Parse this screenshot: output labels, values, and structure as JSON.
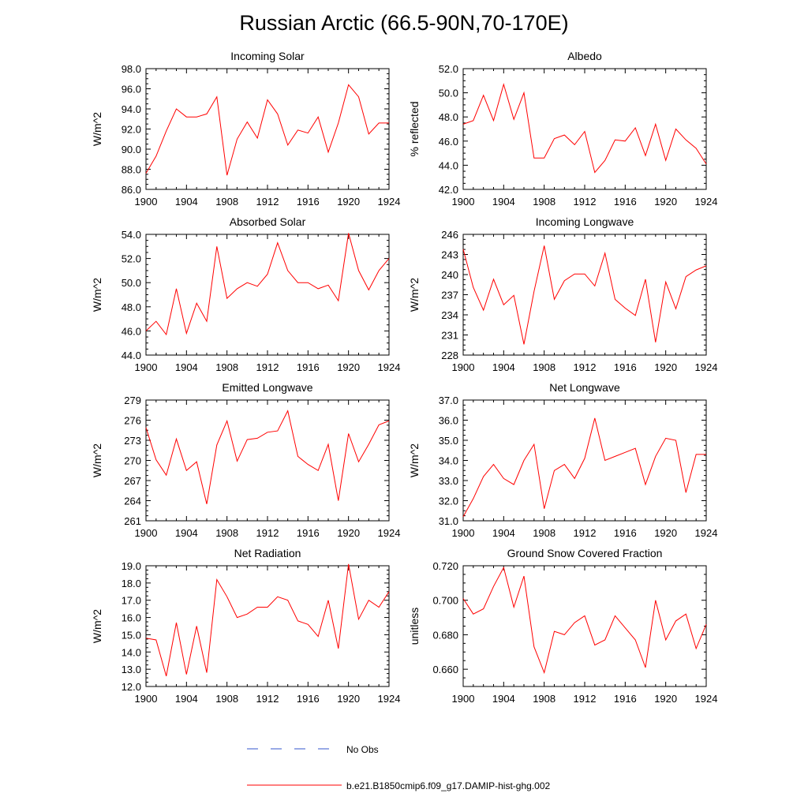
{
  "title": "Russian Arctic (66.5-90N,70-170E)",
  "legend": [
    {
      "label": "No Obs",
      "color": "#3355cc",
      "style": "dashed"
    },
    {
      "label": "b.e21.B1850cmip6.f09_g17.DAMIP-hist-ghg.002",
      "color": "#ff0000",
      "style": "solid"
    }
  ],
  "chart_data": [
    {
      "type": "line",
      "title": "Incoming Solar",
      "ylabel": "W/m^2",
      "xlim": [
        1900,
        1924
      ],
      "ylim": [
        86.0,
        98.0
      ],
      "xticks": [
        "1900",
        "1904",
        "1908",
        "1912",
        "1916",
        "1920",
        "1924"
      ],
      "yticks": [
        "86.0",
        "88.0",
        "90.0",
        "92.0",
        "94.0",
        "96.0",
        "98.0"
      ],
      "x": [
        1900,
        1901,
        1902,
        1903,
        1904,
        1905,
        1906,
        1907,
        1908,
        1909,
        1910,
        1911,
        1912,
        1913,
        1914,
        1915,
        1916,
        1917,
        1918,
        1919,
        1920,
        1921,
        1922,
        1923,
        1924
      ],
      "series": [
        {
          "color": "#ff0000",
          "values": [
            87.6,
            89.3,
            91.8,
            94.0,
            93.2,
            93.2,
            93.5,
            95.2,
            87.4,
            91.0,
            92.7,
            91.1,
            94.9,
            93.5,
            90.4,
            91.9,
            91.6,
            93.2,
            89.7,
            92.6,
            96.4,
            95.2,
            91.5,
            92.6,
            92.6
          ]
        }
      ]
    },
    {
      "type": "line",
      "title": "Albedo",
      "ylabel": "% reflected",
      "xlim": [
        1900,
        1924
      ],
      "ylim": [
        42.0,
        52.0
      ],
      "xticks": [
        "1900",
        "1904",
        "1908",
        "1912",
        "1916",
        "1920",
        "1924"
      ],
      "yticks": [
        "42.0",
        "44.0",
        "46.0",
        "48.0",
        "50.0",
        "52.0"
      ],
      "x": [
        1900,
        1901,
        1902,
        1903,
        1904,
        1905,
        1906,
        1907,
        1908,
        1909,
        1910,
        1911,
        1912,
        1913,
        1914,
        1915,
        1916,
        1917,
        1918,
        1919,
        1920,
        1921,
        1922,
        1923,
        1924
      ],
      "series": [
        {
          "color": "#ff0000",
          "values": [
            47.4,
            47.7,
            49.8,
            47.7,
            50.7,
            47.8,
            50.0,
            44.6,
            44.6,
            46.2,
            46.5,
            45.7,
            46.8,
            43.4,
            44.4,
            46.1,
            46.0,
            47.1,
            44.8,
            47.4,
            44.4,
            47.0,
            46.1,
            45.4,
            44.1
          ]
        }
      ]
    },
    {
      "type": "line",
      "title": "Absorbed Solar",
      "ylabel": "W/m^2",
      "xlim": [
        1900,
        1924
      ],
      "ylim": [
        44.0,
        54.0
      ],
      "xticks": [
        "1900",
        "1904",
        "1908",
        "1912",
        "1916",
        "1920",
        "1924"
      ],
      "yticks": [
        "44.0",
        "46.0",
        "48.0",
        "50.0",
        "52.0",
        "54.0"
      ],
      "x": [
        1900,
        1901,
        1902,
        1903,
        1904,
        1905,
        1906,
        1907,
        1908,
        1909,
        1910,
        1911,
        1912,
        1913,
        1914,
        1915,
        1916,
        1917,
        1918,
        1919,
        1920,
        1921,
        1922,
        1923,
        1924
      ],
      "series": [
        {
          "color": "#ff0000",
          "values": [
            46.0,
            46.8,
            45.7,
            49.5,
            45.8,
            48.3,
            46.8,
            53.0,
            48.7,
            49.5,
            50.0,
            49.7,
            50.7,
            53.3,
            51.0,
            50.0,
            50.0,
            49.5,
            49.8,
            48.5,
            54.1,
            51.0,
            49.4,
            51.0,
            52.0
          ]
        }
      ]
    },
    {
      "type": "line",
      "title": "Incoming Longwave",
      "ylabel": "W/m^2",
      "xlim": [
        1900,
        1924
      ],
      "ylim": [
        228,
        246
      ],
      "xticks": [
        "1900",
        "1904",
        "1908",
        "1912",
        "1916",
        "1920",
        "1924"
      ],
      "yticks": [
        "228",
        "231",
        "234",
        "237",
        "240",
        "243",
        "246"
      ],
      "x": [
        1900,
        1901,
        1902,
        1903,
        1904,
        1905,
        1906,
        1907,
        1908,
        1909,
        1910,
        1911,
        1912,
        1913,
        1914,
        1915,
        1916,
        1917,
        1918,
        1919,
        1920,
        1921,
        1922,
        1923,
        1924
      ],
      "series": [
        {
          "color": "#ff0000",
          "values": [
            243.8,
            238.1,
            234.7,
            239.3,
            235.5,
            236.9,
            229.6,
            237.5,
            244.3,
            236.3,
            239.1,
            240.1,
            240.1,
            238.3,
            243.2,
            236.3,
            235.0,
            233.9,
            239.3,
            229.9,
            238.9,
            234.9,
            239.7,
            240.7,
            241.3
          ]
        }
      ]
    },
    {
      "type": "line",
      "title": "Emitted Longwave",
      "ylabel": "W/m^2",
      "xlim": [
        1900,
        1924
      ],
      "ylim": [
        261,
        279
      ],
      "xticks": [
        "1900",
        "1904",
        "1908",
        "1912",
        "1916",
        "1920",
        "1924"
      ],
      "yticks": [
        "261",
        "264",
        "267",
        "270",
        "273",
        "276",
        "279"
      ],
      "x": [
        1900,
        1901,
        1902,
        1903,
        1904,
        1905,
        1906,
        1907,
        1908,
        1909,
        1910,
        1911,
        1912,
        1913,
        1914,
        1915,
        1916,
        1917,
        1918,
        1919,
        1920,
        1921,
        1922,
        1923,
        1924
      ],
      "series": [
        {
          "color": "#ff0000",
          "values": [
            274.9,
            270.1,
            267.8,
            273.2,
            268.5,
            269.8,
            263.5,
            272.3,
            275.9,
            269.9,
            273.1,
            273.3,
            274.2,
            274.4,
            277.4,
            270.6,
            269.4,
            268.5,
            272.4,
            264.0,
            274.0,
            269.8,
            272.4,
            275.3,
            275.9
          ]
        }
      ]
    },
    {
      "type": "line",
      "title": "Net Longwave",
      "ylabel": "W/m^2",
      "xlim": [
        1900,
        1924
      ],
      "ylim": [
        31.0,
        37.0
      ],
      "xticks": [
        "1900",
        "1904",
        "1908",
        "1912",
        "1916",
        "1920",
        "1924"
      ],
      "yticks": [
        "31.0",
        "32.0",
        "33.0",
        "34.0",
        "35.0",
        "36.0",
        "37.0"
      ],
      "x": [
        1900,
        1901,
        1902,
        1903,
        1904,
        1905,
        1906,
        1907,
        1908,
        1909,
        1910,
        1911,
        1912,
        1913,
        1914,
        1915,
        1916,
        1917,
        1918,
        1919,
        1920,
        1921,
        1922,
        1923,
        1924
      ],
      "series": [
        {
          "color": "#ff0000",
          "values": [
            31.2,
            32.1,
            33.2,
            33.8,
            33.1,
            32.8,
            34.0,
            34.8,
            31.6,
            33.5,
            33.8,
            33.1,
            34.1,
            36.1,
            34.0,
            34.2,
            34.4,
            34.6,
            32.8,
            34.2,
            35.1,
            35.0,
            32.4,
            34.3,
            34.3
          ]
        }
      ]
    },
    {
      "type": "line",
      "title": "Net Radiation",
      "ylabel": "W/m^2",
      "xlim": [
        1900,
        1924
      ],
      "ylim": [
        12.0,
        19.0
      ],
      "xticks": [
        "1900",
        "1904",
        "1908",
        "1912",
        "1916",
        "1920",
        "1924"
      ],
      "yticks": [
        "12.0",
        "13.0",
        "14.0",
        "15.0",
        "16.0",
        "17.0",
        "18.0",
        "19.0"
      ],
      "x": [
        1900,
        1901,
        1902,
        1903,
        1904,
        1905,
        1906,
        1907,
        1908,
        1909,
        1910,
        1911,
        1912,
        1913,
        1914,
        1915,
        1916,
        1917,
        1918,
        1919,
        1920,
        1921,
        1922,
        1923,
        1924
      ],
      "series": [
        {
          "color": "#ff0000",
          "values": [
            14.8,
            14.7,
            12.6,
            15.7,
            12.7,
            15.5,
            12.8,
            18.2,
            17.2,
            16.0,
            16.2,
            16.6,
            16.6,
            17.2,
            17.0,
            15.8,
            15.6,
            14.9,
            17.0,
            14.2,
            19.1,
            15.9,
            17.0,
            16.6,
            17.5
          ]
        }
      ]
    },
    {
      "type": "line",
      "title": "Ground Snow Covered Fraction",
      "ylabel": "unitless",
      "xlim": [
        1900,
        1924
      ],
      "ylim": [
        0.65,
        0.72
      ],
      "xticks": [
        "1900",
        "1904",
        "1908",
        "1912",
        "1916",
        "1920",
        "1924"
      ],
      "yticks": [
        "0.660",
        "0.680",
        "0.700",
        "0.720"
      ],
      "x": [
        1900,
        1901,
        1902,
        1903,
        1904,
        1905,
        1906,
        1907,
        1908,
        1909,
        1910,
        1911,
        1912,
        1913,
        1914,
        1915,
        1916,
        1917,
        1918,
        1919,
        1920,
        1921,
        1922,
        1923,
        1924
      ],
      "series": [
        {
          "color": "#ff0000",
          "values": [
            0.701,
            0.692,
            0.695,
            0.708,
            0.719,
            0.696,
            0.714,
            0.673,
            0.658,
            0.682,
            0.68,
            0.687,
            0.691,
            0.674,
            0.677,
            0.691,
            0.684,
            0.677,
            0.661,
            0.7,
            0.677,
            0.688,
            0.692,
            0.672,
            0.686
          ]
        }
      ]
    }
  ]
}
